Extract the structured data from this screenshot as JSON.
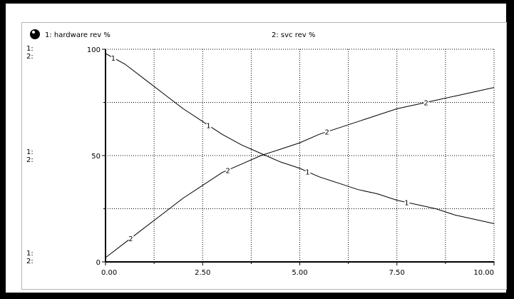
{
  "chart_data": {
    "type": "line",
    "legend": {
      "placement": "top",
      "entries": [
        "1: hardware rev %",
        "2: svc rev %"
      ]
    },
    "axis_scale_labels": [
      [
        "1:",
        "2:"
      ],
      [
        "1:",
        "2:"
      ],
      [
        "1:",
        "2:"
      ]
    ],
    "x_ticks": [
      "0.00",
      "2.50",
      "5.00",
      "7.50",
      "10.00"
    ],
    "y_ticks": [
      "0",
      "50",
      "100"
    ],
    "xlim": [
      0,
      10
    ],
    "ylim": [
      0,
      100
    ],
    "grid": true,
    "series": [
      {
        "marker": "1",
        "x": [
          0,
          0.5,
          1,
          1.5,
          2,
          2.5,
          3,
          3.5,
          4,
          4.5,
          5,
          5.5,
          6,
          6.5,
          7,
          7.5,
          8,
          8.5,
          9,
          9.5,
          10
        ],
        "values": [
          98,
          93,
          86,
          79,
          72,
          66,
          60,
          55,
          51,
          47,
          44,
          40,
          37,
          34,
          32,
          29,
          27,
          25,
          22,
          20,
          18
        ],
        "marker_x": [
          0.2,
          2.65,
          5.2,
          7.75
        ]
      },
      {
        "marker": "2",
        "x": [
          0,
          0.5,
          1,
          1.5,
          2,
          2.5,
          3,
          3.5,
          4,
          4.5,
          5,
          5.5,
          6,
          6.5,
          7,
          7.5,
          8,
          8.5,
          9,
          9.5,
          10
        ],
        "values": [
          2,
          9,
          16,
          23,
          30,
          36,
          42,
          46,
          50,
          53,
          56,
          60,
          63,
          66,
          69,
          72,
          74,
          76,
          78,
          80,
          82
        ],
        "marker_x": [
          0.65,
          3.15,
          5.7,
          8.25
        ]
      }
    ]
  }
}
